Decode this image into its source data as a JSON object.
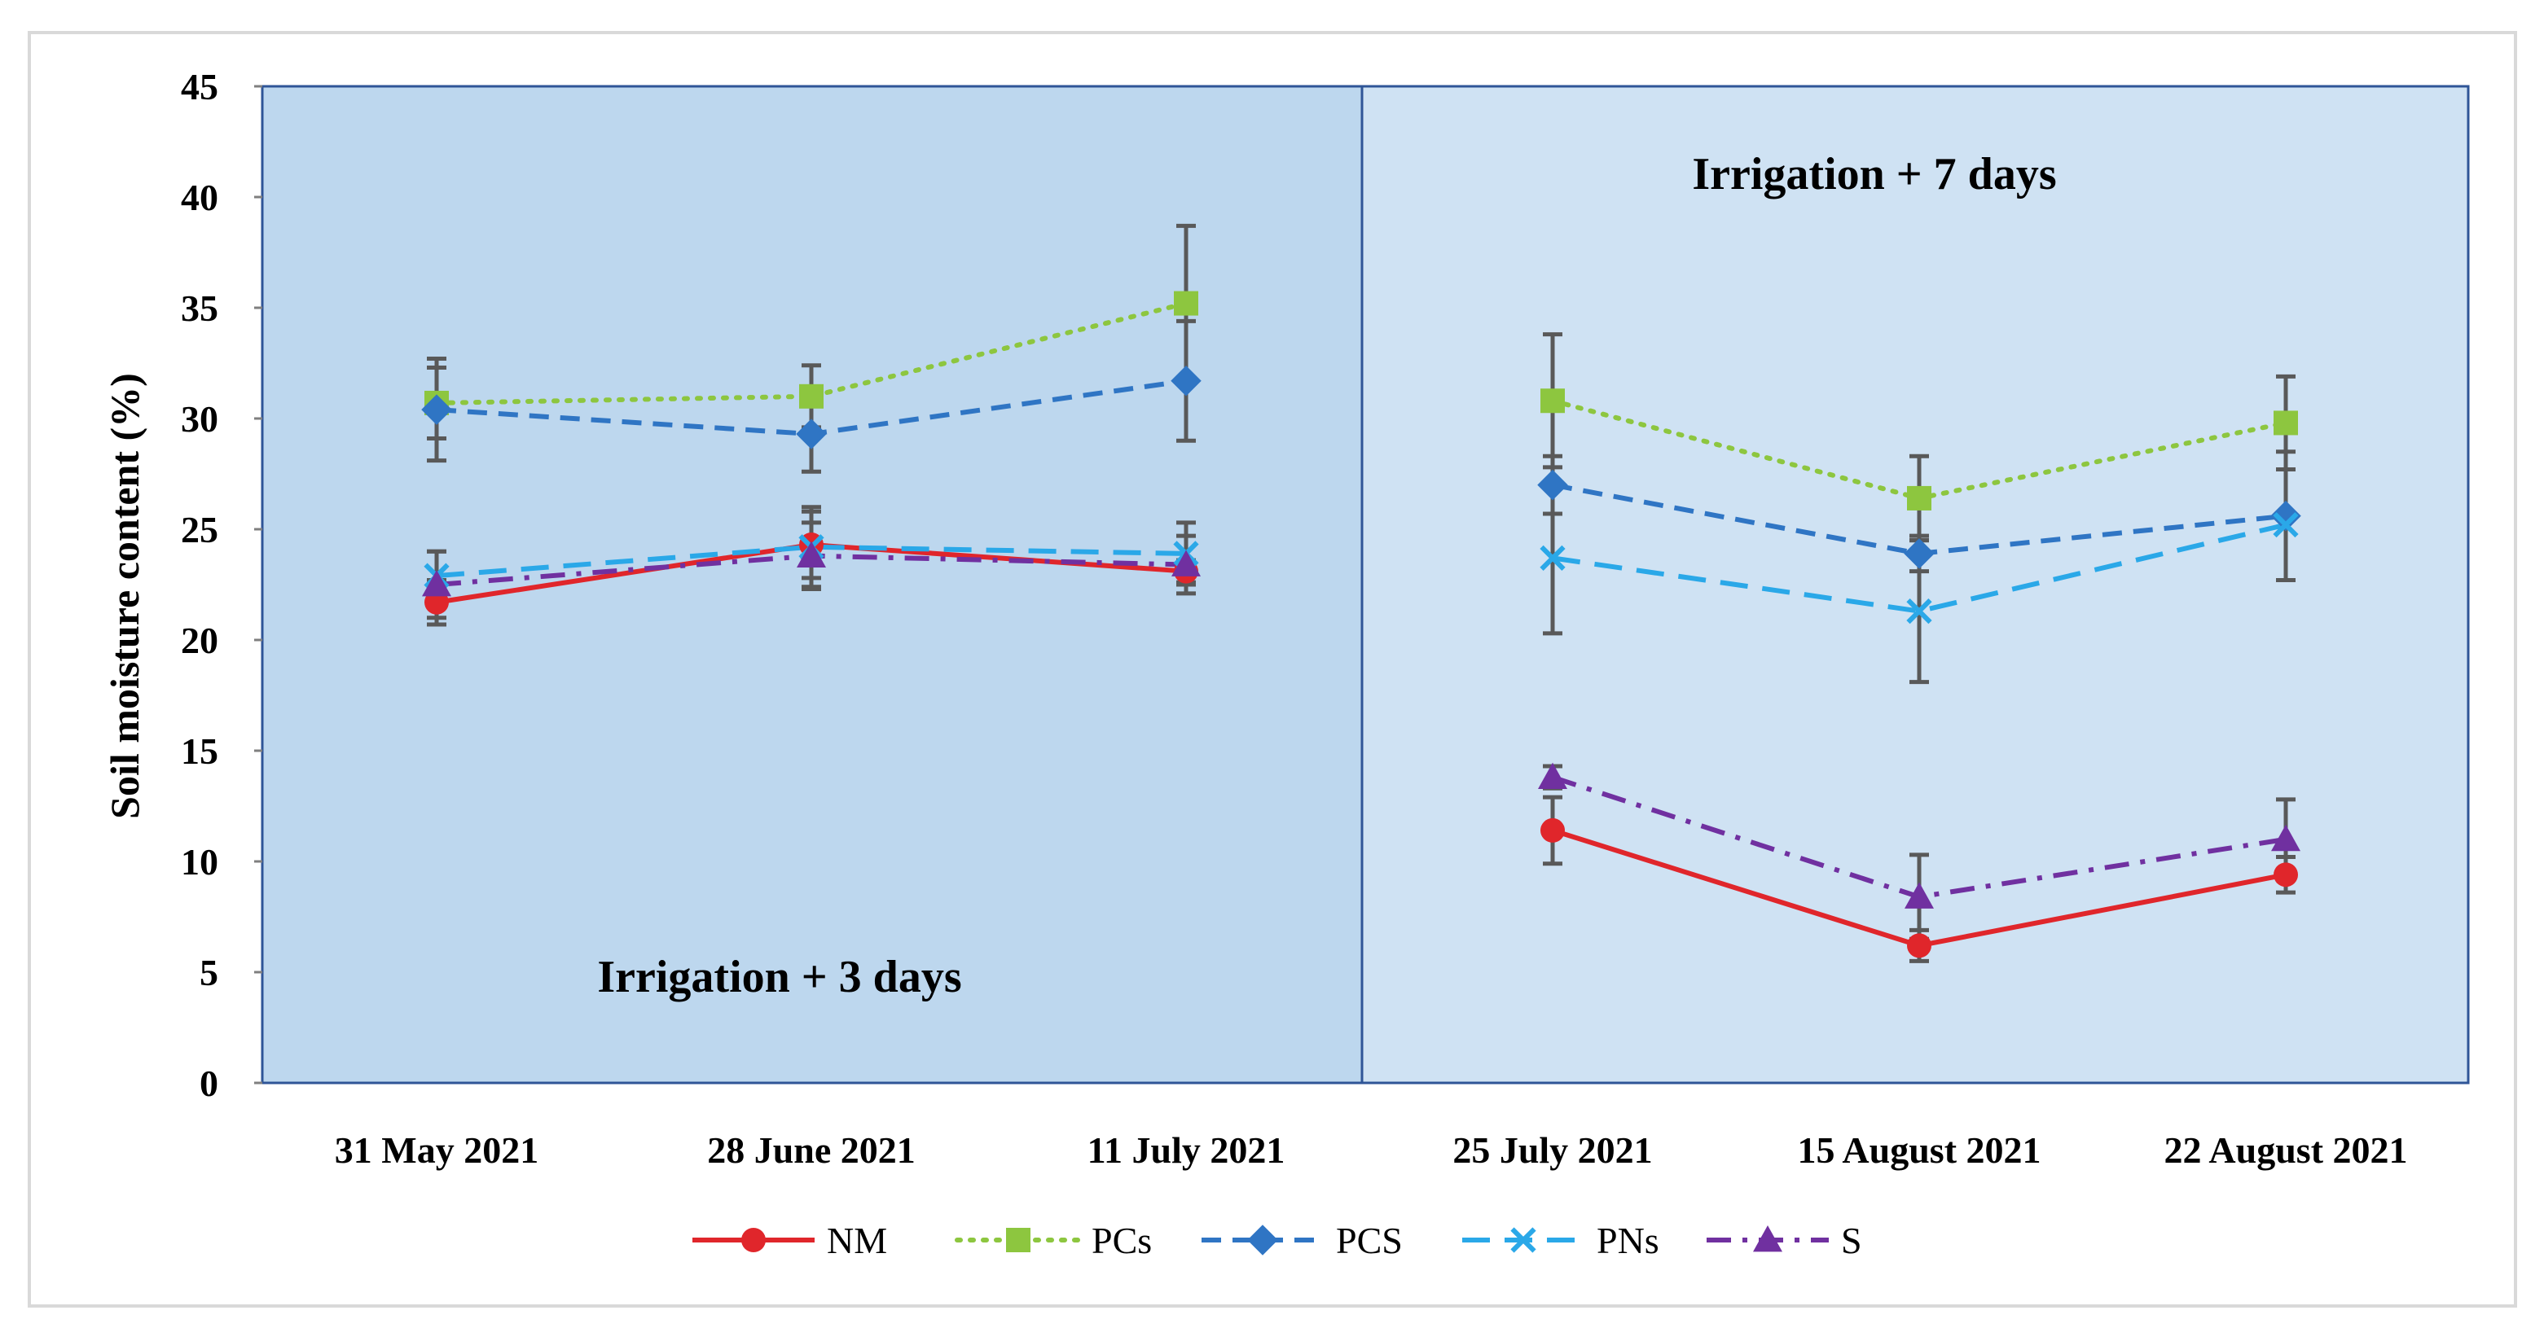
{
  "chart_data": {
    "type": "line",
    "title": "",
    "xlabel": "",
    "ylabel": "Soil moisture content (%)",
    "ylim": [
      0,
      45
    ],
    "yticks": [
      0,
      5,
      10,
      15,
      20,
      25,
      30,
      35,
      40,
      45
    ],
    "categories": [
      "31 May 2021",
      "28 June 2021",
      "11 July 2021",
      "25 July 2021",
      "15 August 2021",
      "22 August 2021"
    ],
    "panels": [
      {
        "label": "Irrigation + 3 days",
        "categories": [
          "31 May 2021",
          "28 June 2021",
          "11 July 2021"
        ],
        "color": "#bdd7ee"
      },
      {
        "label": "Irrigation + 7 days",
        "categories": [
          "25 July 2021",
          "15 August 2021",
          "22 August 2021"
        ],
        "color": "#cfe2f3"
      }
    ],
    "series": [
      {
        "name": "NM",
        "color": "#e0262b",
        "dash": "solid",
        "marker": "circle",
        "values": [
          21.7,
          24.3,
          23.1,
          11.4,
          6.2,
          9.4
        ],
        "errors": [
          1.0,
          1.5,
          0.5,
          1.5,
          0.7,
          0.8
        ]
      },
      {
        "name": "PCs",
        "color": "#8dc63f",
        "dash": "dotted",
        "marker": "square",
        "values": [
          30.7,
          31.0,
          35.2,
          30.8,
          26.4,
          29.8
        ],
        "errors": [
          1.6,
          1.4,
          3.5,
          3.0,
          1.9,
          2.1
        ]
      },
      {
        "name": "PCS",
        "color": "#2f75c4",
        "dash": "dashed",
        "marker": "diamond",
        "values": [
          30.4,
          29.3,
          31.7,
          27.0,
          23.9,
          25.6
        ],
        "errors": [
          2.3,
          1.7,
          2.7,
          1.3,
          0.8,
          2.9
        ]
      },
      {
        "name": "PNs",
        "color": "#2aa8e8",
        "dash": "longdash",
        "marker": "x",
        "values": [
          22.9,
          24.2,
          23.9,
          23.7,
          21.3,
          25.2
        ],
        "errors": [
          1.1,
          1.8,
          1.4,
          3.4,
          3.2,
          2.5
        ]
      },
      {
        "name": "S",
        "color": "#7030a0",
        "dash": "dashdot",
        "marker": "triangle",
        "values": [
          22.5,
          23.8,
          23.4,
          13.8,
          8.4,
          11.0
        ],
        "errors": [
          1.5,
          1.5,
          1.3,
          0.5,
          1.9,
          1.8
        ]
      }
    ],
    "legend_position": "bottom",
    "grid": false
  }
}
